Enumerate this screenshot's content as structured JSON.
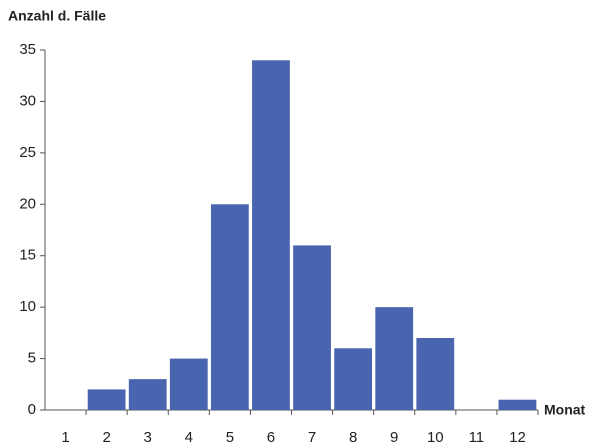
{
  "chart_data": {
    "type": "bar",
    "y_label": "Anzahl d. Fälle",
    "x_label": "Monat",
    "categories": [
      "1",
      "2",
      "3",
      "4",
      "5",
      "6",
      "7",
      "8",
      "9",
      "10",
      "11",
      "12"
    ],
    "values": [
      0,
      2,
      3,
      5,
      20,
      34,
      16,
      6,
      10,
      7,
      0,
      1
    ],
    "color": "#4a65b0",
    "ylim": [
      0,
      35
    ],
    "yticks": [
      0,
      5,
      10,
      15,
      20,
      25,
      30,
      35
    ],
    "grid": false
  }
}
